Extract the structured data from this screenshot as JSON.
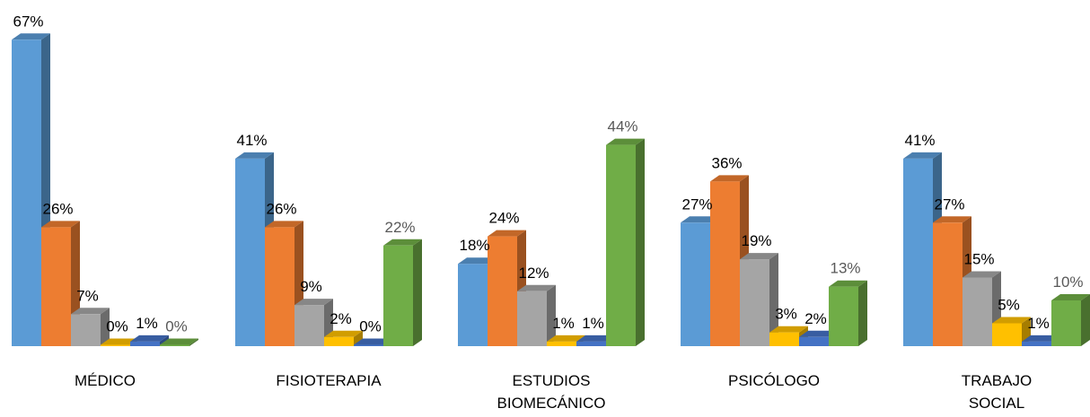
{
  "chart_data": {
    "type": "bar",
    "categories": [
      [
        "MÉDICO"
      ],
      [
        "FISIOTERAPIA"
      ],
      [
        "ESTUDIOS",
        "BIOMECÁNICO"
      ],
      [
        "PSICÓLOGO"
      ],
      [
        "TRABAJO",
        "SOCIAL"
      ]
    ],
    "series": [
      {
        "color": "#5b9bd5",
        "values": [
          67,
          41,
          18,
          27,
          41
        ]
      },
      {
        "color": "#ed7d31",
        "values": [
          26,
          26,
          24,
          36,
          27
        ]
      },
      {
        "color": "#a5a5a5",
        "values": [
          7,
          9,
          12,
          19,
          15
        ]
      },
      {
        "color": "#ffc000",
        "values": [
          0,
          2,
          1,
          3,
          5
        ]
      },
      {
        "color": "#4472c4",
        "values": [
          1,
          0,
          1,
          2,
          1
        ]
      },
      {
        "color": "#70ad47",
        "values": [
          0,
          22,
          44,
          13,
          10
        ]
      }
    ],
    "value_suffix": "%",
    "ylim": [
      0,
      70
    ],
    "grid": false,
    "legend": "none"
  }
}
